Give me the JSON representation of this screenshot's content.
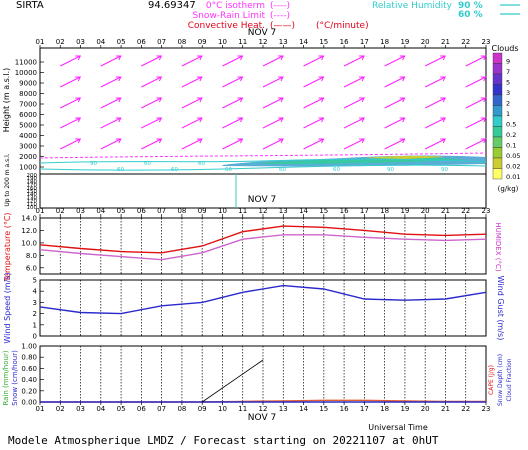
{
  "header": {
    "site": "SIRTA",
    "coords": "94.69347",
    "legend_left": [
      {
        "label": "0°C isotherm",
        "key": "(----)",
        "color": "#ff33ff"
      },
      {
        "label": "Snow-Rain Limit",
        "key": "(----)",
        "color": "#ff33ff"
      },
      {
        "label": "Convective Heat.",
        "key": "(——)",
        "unit": "(°C/minute)",
        "color": "#e0001a"
      }
    ],
    "legend_right": [
      {
        "label": "Relative Humidity",
        "value": "90 %",
        "color": "#33cccc"
      },
      {
        "value": "60 %",
        "color": "#33cccc"
      }
    ]
  },
  "hours": [
    "01",
    "02",
    "03",
    "04",
    "05",
    "06",
    "07",
    "08",
    "09",
    "10",
    "11",
    "12",
    "13",
    "14",
    "15",
    "16",
    "17",
    "18",
    "19",
    "20",
    "21",
    "22",
    "23"
  ],
  "bottom_hours": [
    "01",
    "02",
    "03",
    "04",
    "05",
    "06",
    "07",
    "08",
    "09",
    "10",
    "11",
    "12",
    "13",
    "14",
    "15",
    "16",
    "17",
    "18",
    "19",
    "20",
    "21",
    "22",
    "23"
  ],
  "date_label": "NOV  7",
  "clouds_scale": {
    "title": "Clouds",
    "unit": "(g/kg)",
    "levels": [
      "9",
      "7",
      "5",
      "3",
      "2",
      "1",
      "0.5",
      "0.2",
      "0.1",
      "0.05",
      "0.02",
      "0.01"
    ],
    "colors": [
      "#cc33cc",
      "#9933cc",
      "#6633cc",
      "#3333cc",
      "#3366cc",
      "#3399cc",
      "#33cccc",
      "#33cc99",
      "#66cc66",
      "#99cc33",
      "#cccc33",
      "#ffff66"
    ]
  },
  "panel1": {
    "ylabel": "Height (m a.s.l.)",
    "ylabel2": "Up to 200 m a.s.l.",
    "yticks_upper": [
      "11000",
      "10000",
      "9000",
      "8000",
      "7000",
      "6000",
      "5000",
      "4000",
      "3000",
      "2000",
      "1000"
    ],
    "yticks_lower": [
      "200",
      "190",
      "180",
      "170",
      "160",
      "150",
      "140",
      "130",
      "120",
      "110",
      "100"
    ],
    "contour_labels": [
      "90",
      "60",
      "60",
      "60",
      "60",
      "60",
      "60",
      "60",
      "60",
      "60",
      "60",
      "90",
      "90",
      "90"
    ]
  },
  "panel2": {
    "ylabel": "Temperature (°C)",
    "ylabel_right": "HUMIDEX (°C)",
    "yticks": [
      "14.0",
      "12.0",
      "10.0",
      "8.0",
      "6.0"
    ],
    "ylim": [
      5.0,
      14.0
    ]
  },
  "panel3": {
    "ylabel": "Wind Speed (m/s)",
    "ylabel_right": "Wind Gust (m/s)",
    "yticks": [
      "5",
      "4",
      "3",
      "2",
      "1",
      "0"
    ],
    "ylim": [
      0,
      5
    ]
  },
  "panel4": {
    "ylabel_left1": "Rain (mm/hour)",
    "ylabel_left2": "Snow (cm/hour)",
    "ylabel_right1": "CAPE (J/g)",
    "ylabel_right2": "Snow Depth (cm)",
    "ylabel_right3": "Cloud Fraction",
    "yticks": [
      "1.00",
      "0.80",
      "0.60",
      "0.40",
      "0.20",
      "0.00"
    ],
    "ylim": [
      0,
      1.0
    ]
  },
  "footer": {
    "axis_title": "Universal Time",
    "caption": "Modele Atmospherique LMDZ / Forecast starting on 20221107 at 0hUT"
  },
  "chart_data": [
    {
      "type": "line",
      "title": "Temperature / HUMIDEX",
      "x": [
        "01",
        "03",
        "05",
        "07",
        "09",
        "11",
        "13",
        "15",
        "17",
        "19",
        "21",
        "23"
      ],
      "series": [
        {
          "name": "Temperature",
          "color": "#e01010",
          "values": [
            9.7,
            9.1,
            8.6,
            8.4,
            9.5,
            11.8,
            12.7,
            12.5,
            12.0,
            11.4,
            11.2,
            11.4
          ]
        },
        {
          "name": "HUMIDEX",
          "color": "#cc66cc",
          "values": [
            8.9,
            8.3,
            7.8,
            7.3,
            8.4,
            10.6,
            11.3,
            11.3,
            10.9,
            10.6,
            10.4,
            10.6
          ]
        }
      ],
      "ylim": [
        5.0,
        14.0
      ]
    },
    {
      "type": "line",
      "title": "Wind Speed",
      "x": [
        "01",
        "03",
        "05",
        "07",
        "09",
        "11",
        "13",
        "15",
        "17",
        "19",
        "21",
        "23"
      ],
      "series": [
        {
          "name": "Wind Speed",
          "color": "#2a2acc",
          "values": [
            2.6,
            2.1,
            2.0,
            2.7,
            3.0,
            3.9,
            4.5,
            4.2,
            3.3,
            3.2,
            3.3,
            3.9
          ]
        }
      ],
      "ylim": [
        0,
        5
      ]
    },
    {
      "type": "line",
      "title": "Rain / Snow / CAPE",
      "x": [
        "01",
        "03",
        "05",
        "07",
        "09",
        "11",
        "13",
        "15",
        "17",
        "19",
        "21",
        "23"
      ],
      "series": [
        {
          "name": "Cloud Fraction",
          "color": "#e06030",
          "values": [
            0.0,
            0.0,
            0.0,
            0.0,
            0.0,
            0.01,
            0.02,
            0.03,
            0.03,
            0.02,
            0.01,
            0.01
          ]
        },
        {
          "name": "Rain",
          "color": "#2a2acc",
          "values": [
            0.0,
            0.0,
            0.0,
            0.0,
            0.0,
            0.0,
            0.0,
            0.0,
            0.0,
            0.0,
            0.0,
            0.0
          ]
        }
      ],
      "ylim": [
        0,
        1.0
      ]
    }
  ]
}
